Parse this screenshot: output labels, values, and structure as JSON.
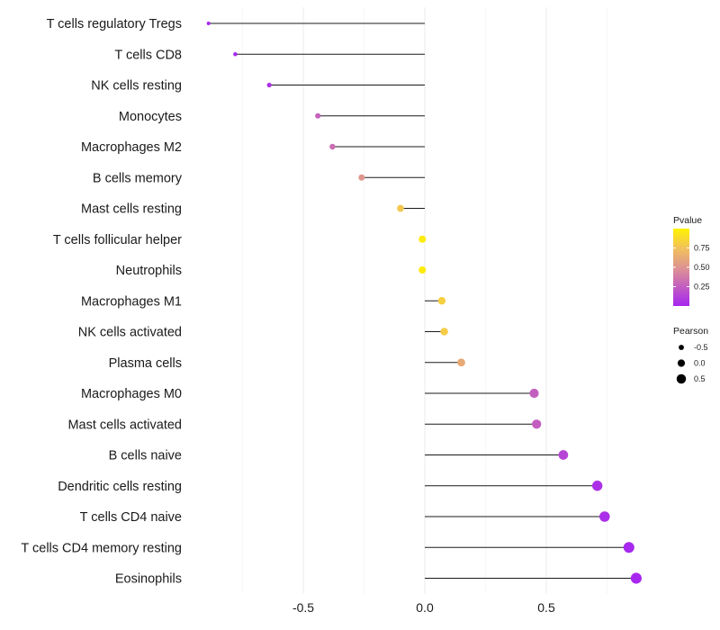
{
  "chart_data": {
    "type": "lollipop",
    "title": "",
    "xlabel": "",
    "ylabel": "",
    "xlim": [
      -0.97,
      0.88
    ],
    "xticks": [
      -0.5,
      0.0,
      0.5
    ],
    "xtick_labels": [
      "-0.5",
      "0.0",
      "0.5"
    ],
    "grid": true,
    "legend_position": "right",
    "points": [
      {
        "label": "T cells regulatory  Tregs",
        "pearson": -0.89,
        "pvalue": 0.01
      },
      {
        "label": "T cells CD8",
        "pearson": -0.78,
        "pvalue": 0.02
      },
      {
        "label": "NK cells resting",
        "pearson": -0.64,
        "pvalue": 0.05
      },
      {
        "label": "Monocytes",
        "pearson": -0.44,
        "pvalue": 0.27
      },
      {
        "label": "Macrophages M2",
        "pearson": -0.38,
        "pvalue": 0.32
      },
      {
        "label": "B cells memory",
        "pearson": -0.26,
        "pvalue": 0.52
      },
      {
        "label": "Mast cells resting",
        "pearson": -0.1,
        "pvalue": 0.78
      },
      {
        "label": "T cells follicular helper",
        "pearson": -0.01,
        "pvalue": 0.97
      },
      {
        "label": "Neutrophils",
        "pearson": -0.01,
        "pvalue": 0.97
      },
      {
        "label": "Macrophages M1",
        "pearson": 0.07,
        "pvalue": 0.82
      },
      {
        "label": "NK cells activated",
        "pearson": 0.08,
        "pvalue": 0.8
      },
      {
        "label": "Plasma cells",
        "pearson": 0.15,
        "pvalue": 0.62
      },
      {
        "label": "Macrophages M0",
        "pearson": 0.45,
        "pvalue": 0.26
      },
      {
        "label": "Mast cells activated",
        "pearson": 0.46,
        "pvalue": 0.25
      },
      {
        "label": "B cells naive",
        "pearson": 0.57,
        "pvalue": 0.14
      },
      {
        "label": "Dendritic cells resting",
        "pearson": 0.71,
        "pvalue": 0.05
      },
      {
        "label": "T cells CD4 naive",
        "pearson": 0.74,
        "pvalue": 0.04
      },
      {
        "label": "T cells CD4 memory resting",
        "pearson": 0.84,
        "pvalue": 0.01
      },
      {
        "label": "Eosinophils",
        "pearson": 0.87,
        "pvalue": 0.005
      }
    ],
    "color_legend": {
      "title": "Pvalue",
      "ticks": [
        0.25,
        0.5,
        0.75
      ],
      "tick_labels": [
        "0.25",
        "0.50",
        "0.75"
      ],
      "range": [
        0.0,
        1.0
      ],
      "low_color": "#a626f0",
      "mid_color": "#d98a9a",
      "high_color": "#fff200"
    },
    "size_legend": {
      "title": "Pearson",
      "values": [
        -0.5,
        0.0,
        0.5
      ],
      "labels": [
        "-0.5",
        "0.0",
        "0.5"
      ]
    }
  }
}
